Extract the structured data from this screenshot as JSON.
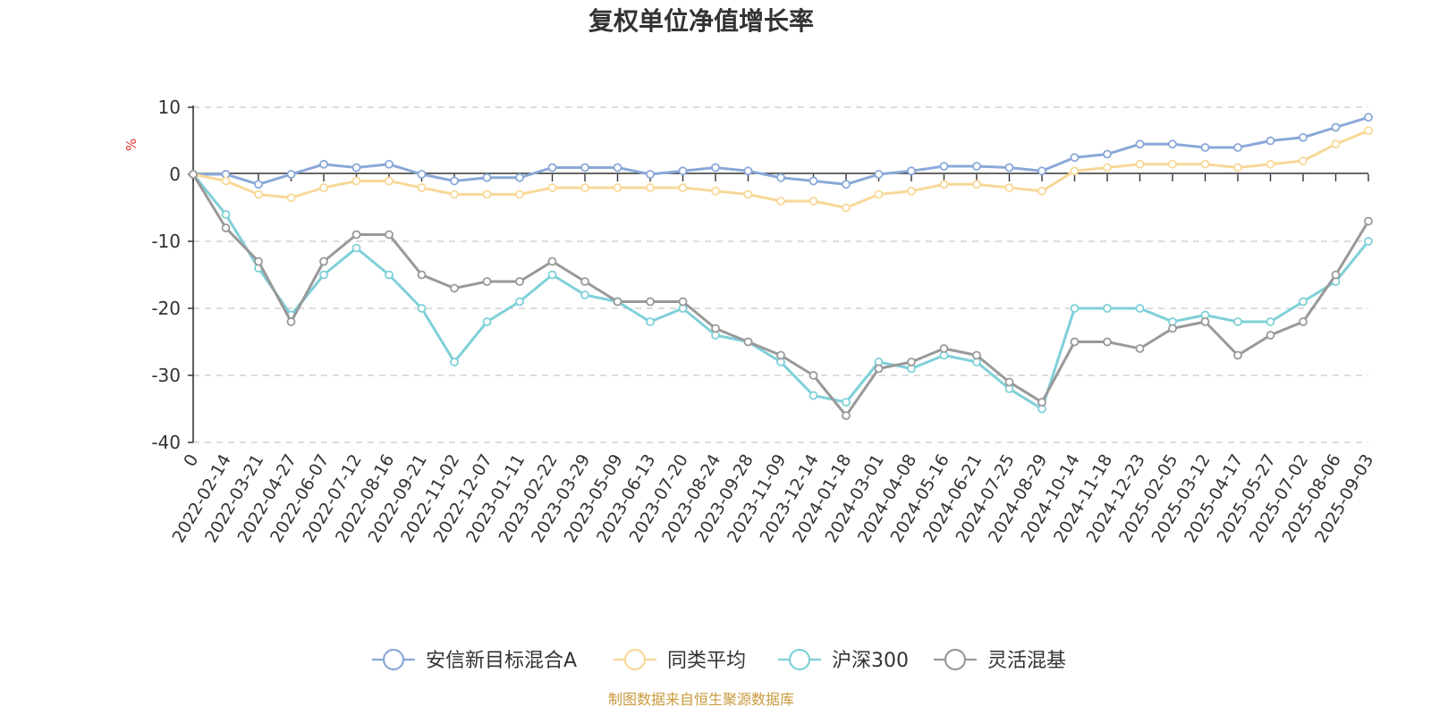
{
  "chart_data": {
    "type": "line",
    "title": "复权单位净值增长率",
    "ylabel": "%",
    "ylim": [
      -40,
      10
    ],
    "yticks": [
      10,
      0,
      -10,
      -20,
      -30,
      -40
    ],
    "grid": true,
    "legend_position": "bottom",
    "x_labels": [
      "0",
      "2022-02-14",
      "2022-03-21",
      "2022-04-27",
      "2022-06-07",
      "2022-07-12",
      "2022-08-16",
      "2022-09-21",
      "2022-11-02",
      "2022-12-07",
      "2023-01-11",
      "2023-02-22",
      "2023-03-29",
      "2023-05-09",
      "2023-06-13",
      "2023-07-20",
      "2023-08-24",
      "2023-09-28",
      "2023-11-09",
      "2023-12-14",
      "2024-01-18",
      "2024-03-01",
      "2024-04-08",
      "2024-05-16",
      "2024-06-21",
      "2024-07-25",
      "2024-08-29",
      "2024-10-14",
      "2024-11-18",
      "2024-12-23",
      "2025-02-05",
      "2025-03-12",
      "2025-04-17",
      "2025-05-27",
      "2025-07-02",
      "2025-08-06",
      "2025-09-03"
    ],
    "series": [
      {
        "name": "安信新目标混合A",
        "color": "#8aa8d8",
        "values": [
          0,
          0,
          -1.5,
          0,
          1.5,
          1,
          1.5,
          0,
          -1,
          -0.5,
          -0.5,
          1,
          1,
          1,
          0,
          0.5,
          1,
          0.5,
          -0.5,
          -1,
          -1.5,
          0,
          0.5,
          1.2,
          1.2,
          1,
          0.5,
          2.5,
          3,
          4.5,
          4.5,
          4,
          4,
          5,
          5.5,
          7,
          8.5
        ]
      },
      {
        "name": "同类平均",
        "color": "#f8d898",
        "values": [
          0,
          -1,
          -3,
          -3.5,
          -2,
          -1,
          -1,
          -2,
          -3,
          -3,
          -3,
          -2,
          -2,
          -2,
          -2,
          -2,
          -2.5,
          -3,
          -4,
          -4,
          -5,
          -3,
          -2.5,
          -1.5,
          -1.5,
          -2,
          -2.5,
          0.5,
          1,
          1.5,
          1.5,
          1.5,
          1,
          1.5,
          2,
          4.5,
          6.5
        ]
      },
      {
        "name": "沪深300",
        "color": "#7fd0d8",
        "values": [
          0,
          -6,
          -14,
          -21,
          -15,
          -11,
          -15,
          -20,
          -28,
          -22,
          -19,
          -15,
          -18,
          -19,
          -22,
          -20,
          -24,
          -25,
          -28,
          -33,
          -34,
          -28,
          -29,
          -27,
          -28,
          -32,
          -35,
          -20,
          -20,
          -20,
          -22,
          -21,
          -22,
          -22,
          -19,
          -16,
          -10
        ]
      },
      {
        "name": "灵活混基",
        "color": "#999999",
        "values": [
          0,
          -8,
          -13,
          -22,
          -13,
          -9,
          -9,
          -15,
          -17,
          -16,
          -16,
          -13,
          -16,
          -19,
          -19,
          -19,
          -23,
          -25,
          -27,
          -30,
          -36,
          -29,
          -28,
          -26,
          -27,
          -31,
          -34,
          -25,
          -25,
          -26,
          -23,
          -22,
          -27,
          -24,
          -22,
          -15,
          -7
        ]
      }
    ]
  },
  "source_text": "制图数据来自恒生聚源数据库"
}
